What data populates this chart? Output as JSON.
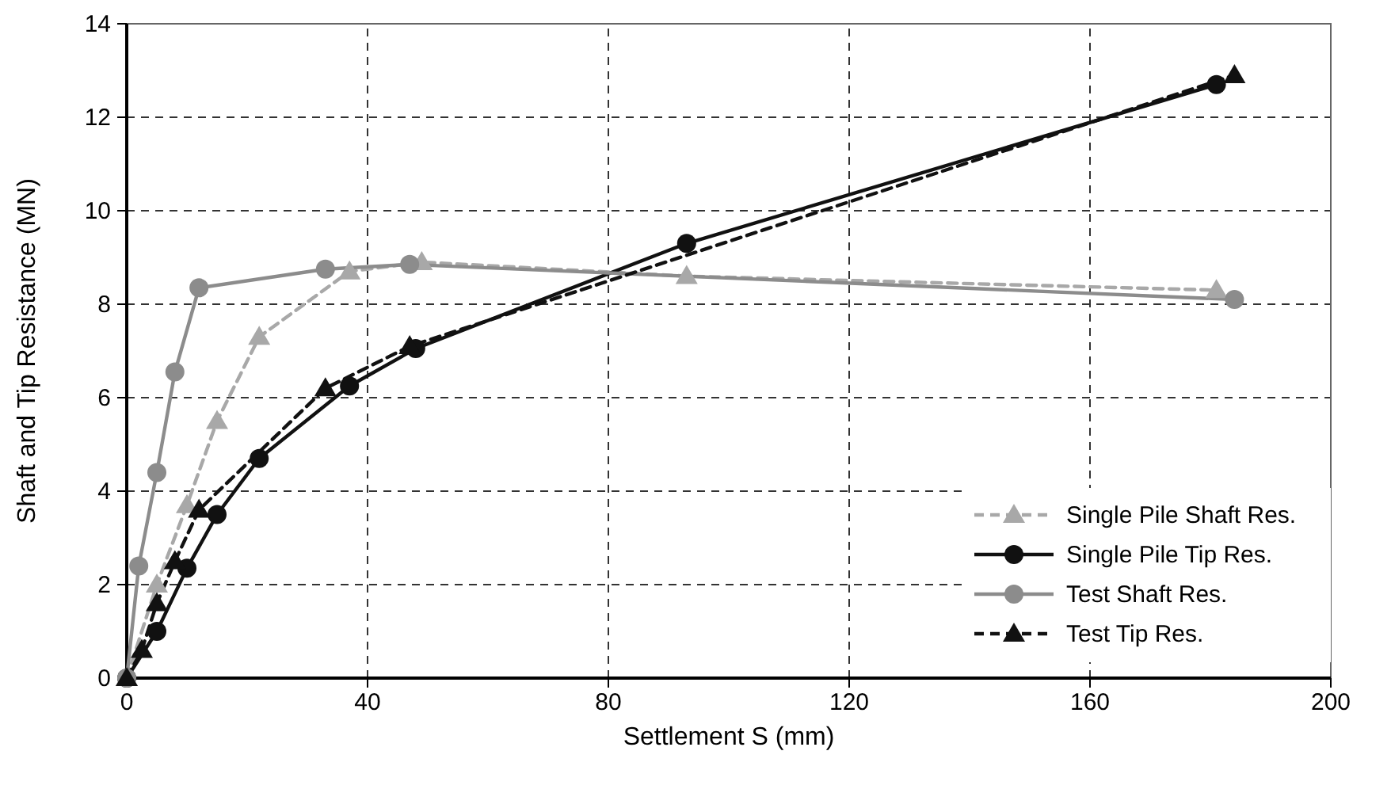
{
  "chart_data": {
    "type": "line",
    "xlabel": "Settlement S (mm)",
    "ylabel": "Shaft and Tip Resistance (MN)",
    "xlim": [
      0,
      200
    ],
    "ylim": [
      0,
      14
    ],
    "xticks": [
      0,
      40,
      80,
      120,
      160,
      200
    ],
    "yticks": [
      0,
      2,
      4,
      6,
      8,
      10,
      12,
      14
    ],
    "grid": true,
    "legend": "bottom right",
    "series": [
      {
        "name": "Single Pile Shaft Res.",
        "color": "#a8a8a8",
        "marker": "triangle",
        "line_style": "dashed",
        "x": [
          0,
          5,
          10,
          15,
          22,
          37,
          49,
          93,
          181
        ],
        "values": [
          0,
          2.0,
          3.7,
          5.5,
          7.3,
          8.7,
          8.9,
          8.6,
          8.3
        ]
      },
      {
        "name": "Single Pile Tip Res.",
        "color": "#111111",
        "marker": "circle",
        "line_style": "solid",
        "x": [
          0,
          5,
          10,
          15,
          22,
          37,
          48,
          93,
          181
        ],
        "values": [
          0,
          1.0,
          2.35,
          3.5,
          4.7,
          6.25,
          7.05,
          9.3,
          12.7
        ]
      },
      {
        "name": "Test Shaft Res.",
        "color": "#8c8c8c",
        "marker": "circle",
        "line_style": "solid",
        "x": [
          0,
          2,
          5,
          8,
          12,
          33,
          47,
          184
        ],
        "values": [
          0,
          2.4,
          4.4,
          6.55,
          8.35,
          8.75,
          8.85,
          8.1
        ]
      },
      {
        "name": "Test Tip Res.",
        "color": "#111111",
        "marker": "triangle",
        "line_style": "dashed",
        "x": [
          0,
          2.5,
          5,
          8,
          12,
          33,
          47,
          184
        ],
        "values": [
          0,
          0.6,
          1.6,
          2.5,
          3.6,
          6.2,
          7.1,
          12.9
        ]
      }
    ]
  }
}
